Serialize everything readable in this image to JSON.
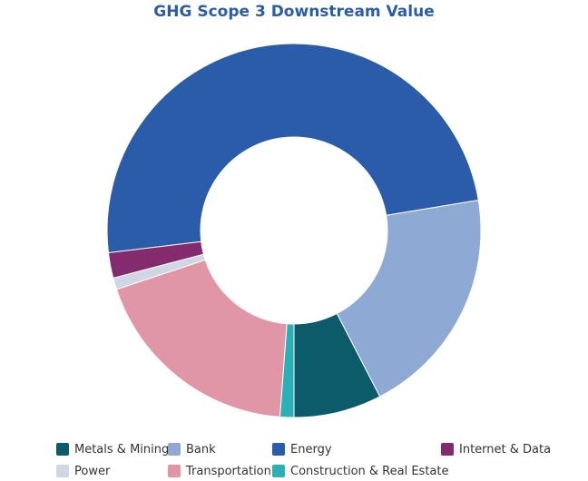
{
  "chart_data": {
    "type": "pie",
    "title": "GHG Scope 3 Downstream Value",
    "donut": true,
    "slices": [
      {
        "label": "Metals & Mining",
        "value": 7.6,
        "color": "#0b5b6b"
      },
      {
        "label": "Bank",
        "value": 20.0,
        "color": "#8ea9d4"
      },
      {
        "label": "Energy",
        "value": 49.3,
        "color": "#2a5caa"
      },
      {
        "label": "Internet & Data",
        "value": 2.2,
        "color": "#842a6e"
      },
      {
        "label": "Power",
        "value": 1.0,
        "color": "#cfd6e4"
      },
      {
        "label": "Transportation",
        "value": 18.7,
        "color": "#e196a8"
      },
      {
        "label": "Construction & Real Estate",
        "value": 1.2,
        "color": "#2bb1b5"
      }
    ],
    "legend_position": "bottom"
  }
}
